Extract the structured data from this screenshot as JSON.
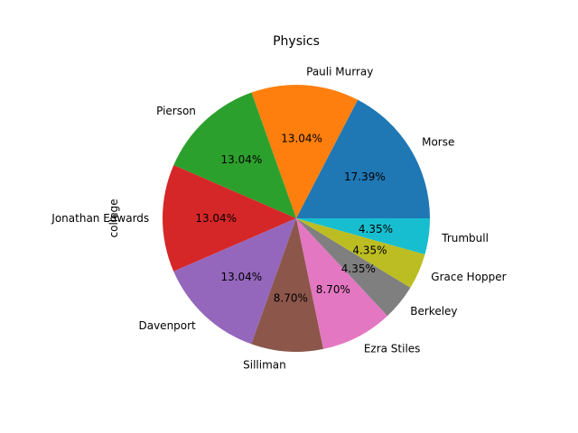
{
  "chart_data": {
    "type": "pie",
    "title": "Physics",
    "ylabel": "college",
    "slices": [
      {
        "label": "Morse",
        "value": 17.39,
        "pct_label": "17.39%",
        "color": "#1f77b4"
      },
      {
        "label": "Pauli Murray",
        "value": 13.04,
        "pct_label": "13.04%",
        "color": "#ff7f0e"
      },
      {
        "label": "Pierson",
        "value": 13.04,
        "pct_label": "13.04%",
        "color": "#2ca02c"
      },
      {
        "label": "Jonathan Edwards",
        "value": 13.04,
        "pct_label": "13.04%",
        "color": "#d62728"
      },
      {
        "label": "Davenport",
        "value": 13.04,
        "pct_label": "13.04%",
        "color": "#9467bd"
      },
      {
        "label": "Silliman",
        "value": 8.7,
        "pct_label": "8.70%",
        "color": "#8c564b"
      },
      {
        "label": "Ezra Stiles",
        "value": 8.7,
        "pct_label": "8.70%",
        "color": "#e377c2"
      },
      {
        "label": "Berkeley",
        "value": 4.35,
        "pct_label": "4.35%",
        "color": "#7f7f7f"
      },
      {
        "label": "Grace Hopper",
        "value": 4.35,
        "pct_label": "4.35%",
        "color": "#bcbd22"
      },
      {
        "label": "Trumbull",
        "value": 4.35,
        "pct_label": "4.35%",
        "color": "#17becf"
      }
    ]
  }
}
